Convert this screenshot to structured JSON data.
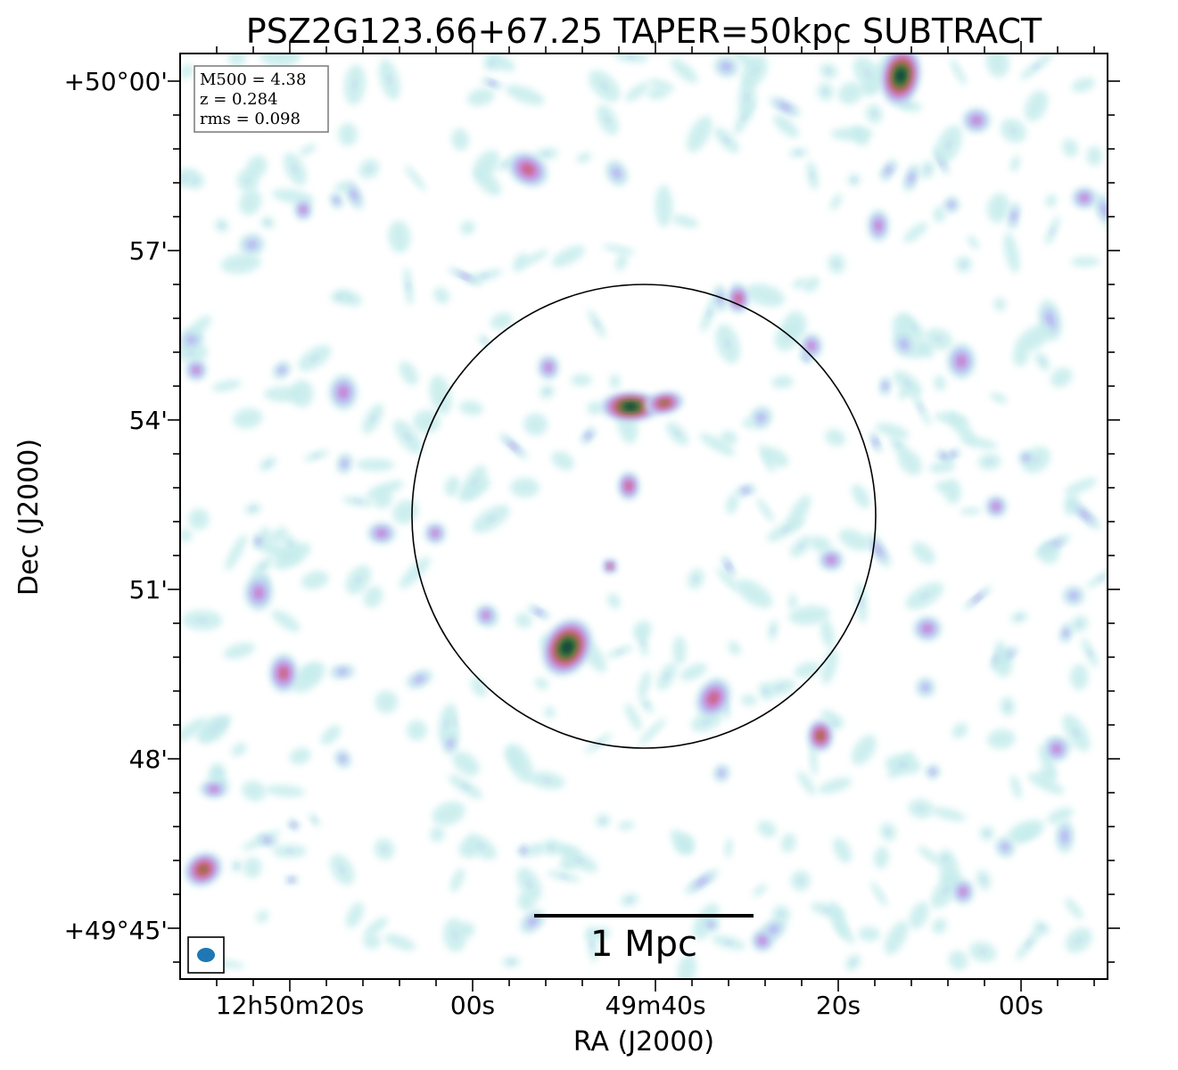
{
  "chart_data": {
    "type": "heatmap",
    "title": "PSZ2G123.66+67.25 TAPER=50kpc SUBTRACT",
    "xlabel": "RA (J2000)",
    "ylabel": "Dec (J2000)",
    "x_ticks": [
      "12h50m20s",
      "00s",
      "49m40s",
      "20s",
      "00s"
    ],
    "y_ticks": [
      "+50°00'",
      "57'",
      "54'",
      "51'",
      "48'",
      "+49°45'"
    ],
    "info_box": [
      "M500 = 4.38",
      "z = 0.284",
      "rms = 0.098"
    ],
    "scale_bar_label": "1 Mpc",
    "colormap": [
      "#ffffff",
      "#c6ecec",
      "#b7c2f4",
      "#c58fe0",
      "#d266a0",
      "#c0603c",
      "#3d8c3a",
      "#1a5a3a",
      "#082f40"
    ],
    "beam_color": "#1f77b4"
  }
}
